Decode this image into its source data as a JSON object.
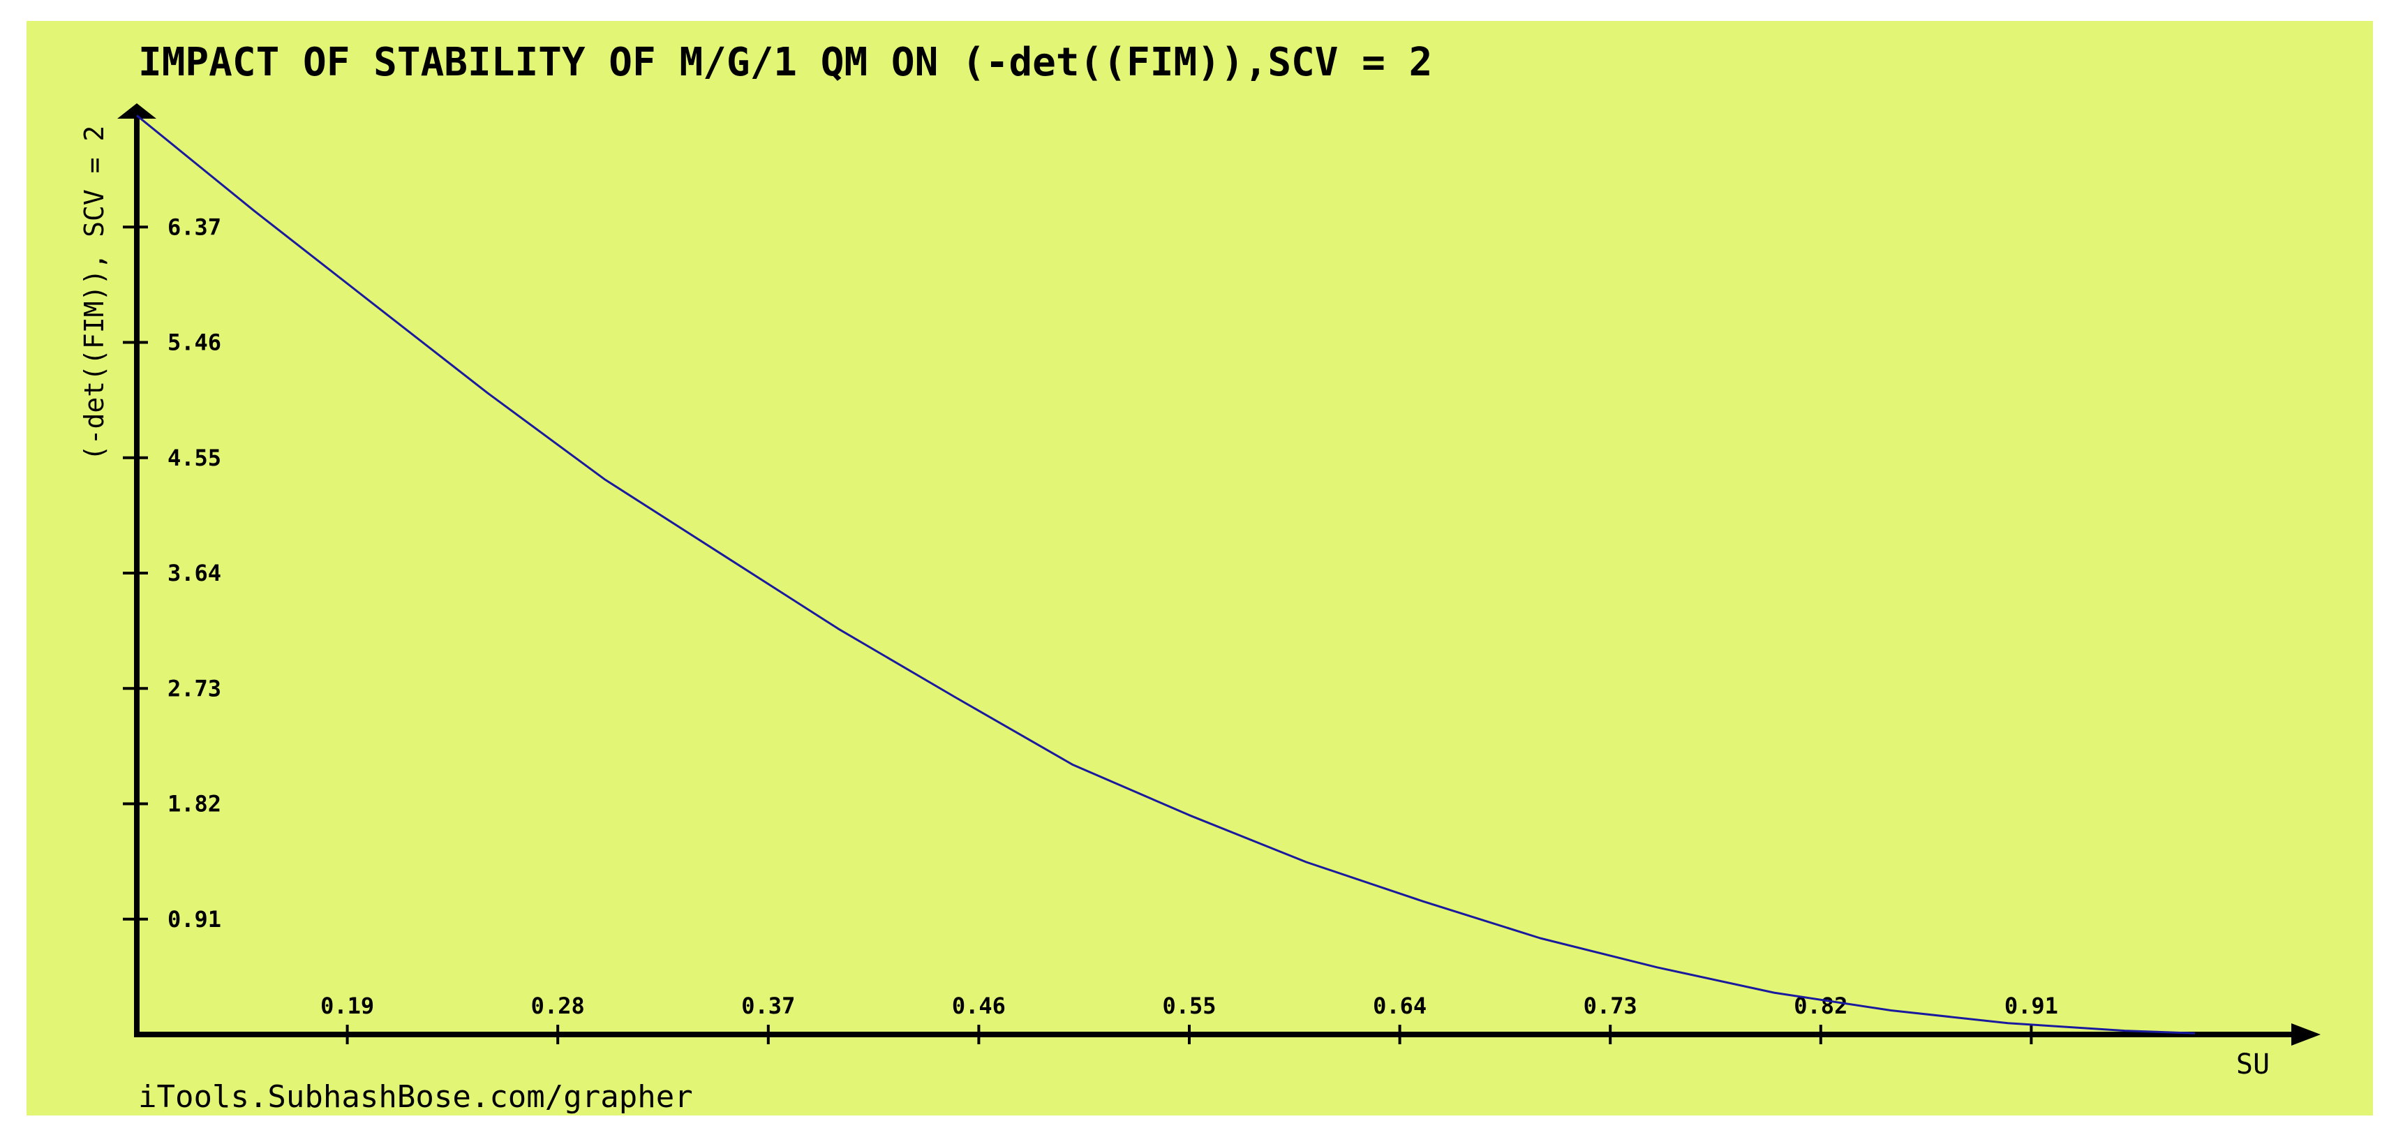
{
  "colors": {
    "background": "#e3f575",
    "axis": "#000000",
    "line": "#1a1a9e",
    "text": "#000000"
  },
  "watermark": "iTools.SubhashBose.com/grapher",
  "chart_data": {
    "type": "line",
    "title": "IMPACT OF STABILITY OF M/G/1 QM ON (-det((FIM)),SCV =  2",
    "xlabel": "SU",
    "ylabel": "(-det((FIM)), SCV = 2",
    "xlim": [
      0.1,
      1.0
    ],
    "ylim": [
      0,
      7.28
    ],
    "x_ticks": [
      "0.19",
      "0.28",
      "0.37",
      "0.46",
      "0.55",
      "0.64",
      "0.73",
      "0.82",
      "0.91"
    ],
    "y_ticks": [
      "0.91",
      "1.82",
      "2.73",
      "3.64",
      "4.55",
      "5.46",
      "6.37"
    ],
    "grid": false,
    "legend": "none",
    "series": [
      {
        "x": [
          0.1,
          0.15,
          0.2,
          0.25,
          0.3,
          0.35,
          0.4,
          0.45,
          0.5,
          0.55,
          0.6,
          0.65,
          0.7,
          0.75,
          0.8,
          0.85,
          0.9,
          0.95,
          0.98
        ],
        "y": [
          7.25,
          6.5,
          5.78,
          5.06,
          4.38,
          3.79,
          3.2,
          2.66,
          2.13,
          1.73,
          1.36,
          1.05,
          0.76,
          0.53,
          0.33,
          0.19,
          0.09,
          0.03,
          0.01
        ]
      }
    ]
  }
}
